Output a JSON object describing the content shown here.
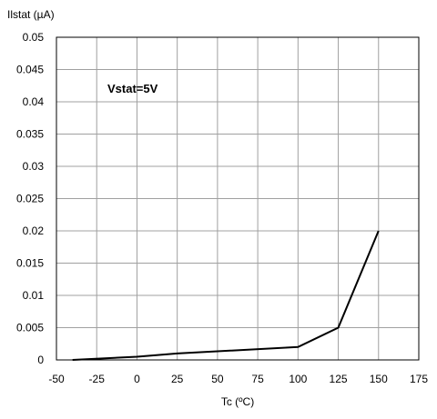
{
  "chart_data": {
    "type": "line",
    "title": "",
    "ylabel": "Ilstat (µA)",
    "xlabel": "Tc (ºC)",
    "annotation": "Vstat=5V",
    "xlim": [
      -50,
      175
    ],
    "ylim": [
      0,
      0.05
    ],
    "grid": true,
    "x_ticks": [
      -50,
      -25,
      0,
      25,
      50,
      75,
      100,
      125,
      150,
      175
    ],
    "x_tick_labels": [
      "-50",
      "-25",
      "0",
      "25",
      "50",
      "75",
      "100",
      "125",
      "150",
      "175"
    ],
    "y_ticks": [
      0,
      0.005,
      0.01,
      0.015,
      0.02,
      0.025,
      0.03,
      0.035,
      0.04,
      0.045,
      0.05
    ],
    "y_tick_labels": [
      "0",
      "0.005",
      "0.01",
      "0.015",
      "0.02",
      "0.025",
      "0.03",
      "0.035",
      "0.04",
      "0.045",
      "0.05"
    ],
    "series": [
      {
        "x": [
          -40,
          0,
          25,
          100,
          125,
          150
        ],
        "y": [
          0,
          0.0005,
          0.001,
          0.002,
          0.005,
          0.02
        ],
        "color": "#000000"
      }
    ]
  }
}
